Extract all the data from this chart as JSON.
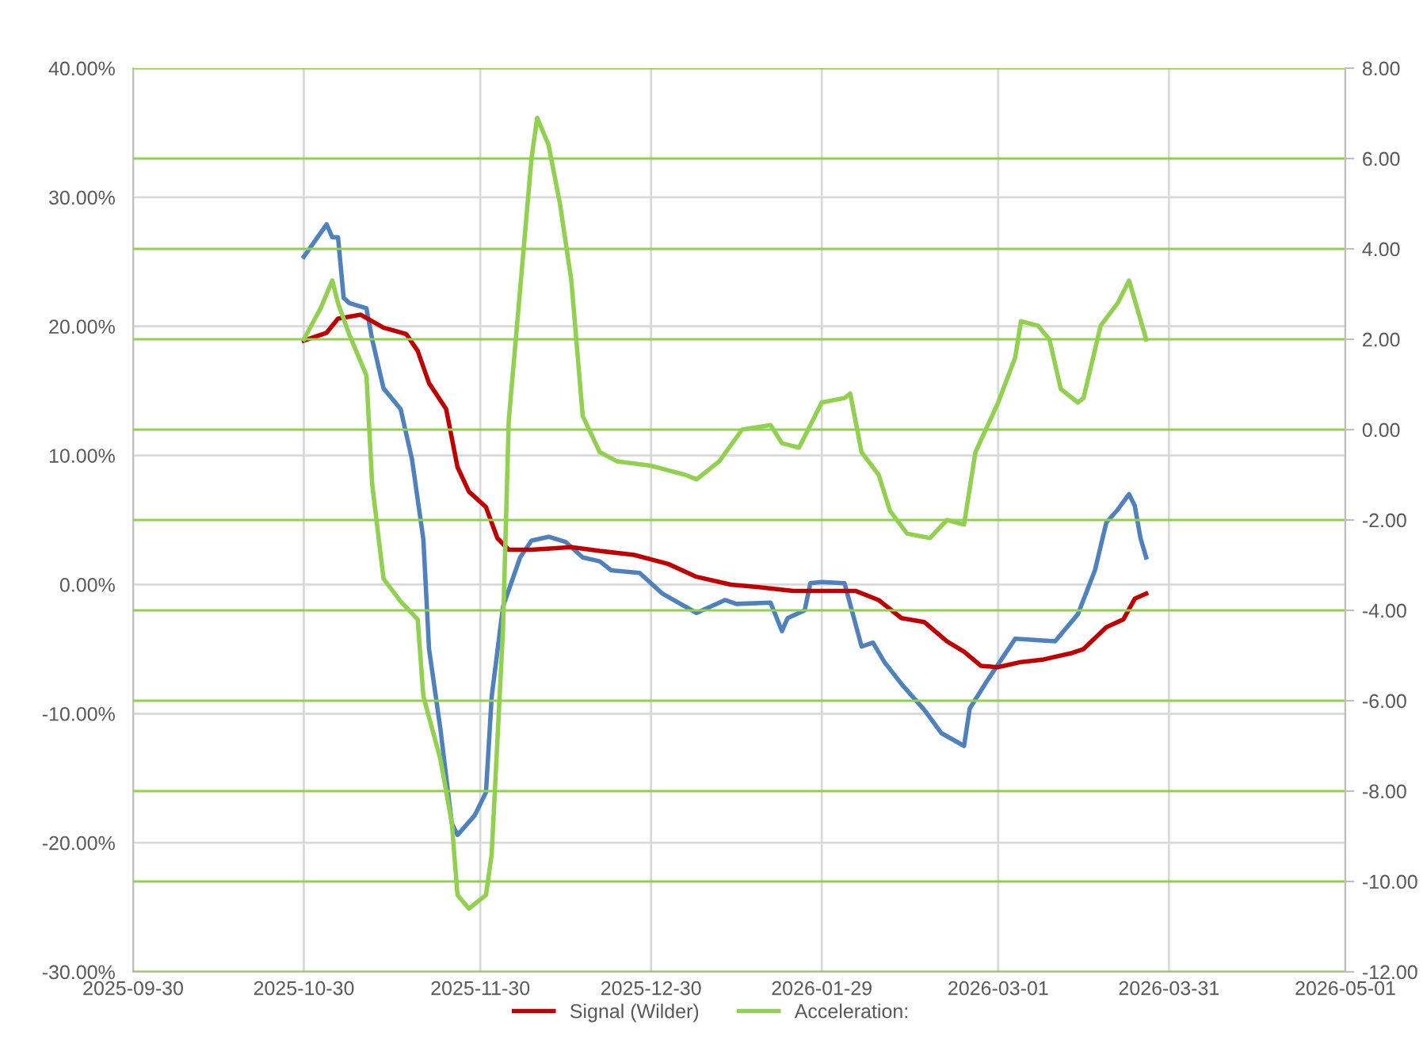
{
  "chart_data": {
    "type": "line",
    "xlim": [
      "2025-09-30",
      "2026-05-01"
    ],
    "xticks": [
      "2025-09-30",
      "2025-10-30",
      "2025-11-30",
      "2025-12-30",
      "2026-01-29",
      "2026-03-01",
      "2026-03-31",
      "2026-05-01"
    ],
    "ylim": [
      -30,
      40
    ],
    "yticks": [
      {
        "value": -30,
        "label": "-30.00%"
      },
      {
        "value": -20,
        "label": "-20.00%"
      },
      {
        "value": -10,
        "label": "-10.00%"
      },
      {
        "value": 0,
        "label": "0.00%"
      },
      {
        "value": 10,
        "label": "10.00%"
      },
      {
        "value": 20,
        "label": "20.00%"
      },
      {
        "value": 30,
        "label": "30.00%"
      },
      {
        "value": 40,
        "label": "40.00%"
      }
    ],
    "y2lim": [
      -12,
      8
    ],
    "y2ticks": [
      {
        "value": -12,
        "label": "-12.00"
      },
      {
        "value": -10,
        "label": "-10.00"
      },
      {
        "value": -8,
        "label": "-8.00"
      },
      {
        "value": -6,
        "label": "-6.00"
      },
      {
        "value": -4,
        "label": "-4.00"
      },
      {
        "value": -2,
        "label": "-2.00"
      },
      {
        "value": 0,
        "label": "0.00"
      },
      {
        "value": 2,
        "label": "2.00"
      },
      {
        "value": 4,
        "label": "4.00"
      },
      {
        "value": 6,
        "label": "6.00"
      },
      {
        "value": 8,
        "label": "8.00"
      }
    ],
    "grid": true,
    "legend": "bottom",
    "marker": "none",
    "line_style": "solid",
    "series": [
      {
        "color": "#4f81bd",
        "x": [
          "2025-10-30",
          "2025-11-03",
          "2025-11-04",
          "2025-11-05",
          "2025-11-06",
          "2025-11-07",
          "2025-11-10",
          "2025-11-11",
          "2025-11-13",
          "2025-11-16",
          "2025-11-18",
          "2025-11-20",
          "2025-11-21",
          "2025-11-23",
          "2025-11-25",
          "2025-11-26",
          "2025-11-29",
          "2025-12-01",
          "2025-12-02",
          "2025-12-04",
          "2025-12-07",
          "2025-12-09",
          "2025-12-12",
          "2025-12-15",
          "2025-12-18",
          "2025-12-21",
          "2025-12-23",
          "2025-12-28",
          "2026-01-01",
          "2026-01-07",
          "2026-01-10",
          "2026-01-12",
          "2026-01-14",
          "2026-01-20",
          "2026-01-22",
          "2026-01-23",
          "2026-01-26",
          "2026-01-27",
          "2026-01-29",
          "2026-02-02",
          "2026-02-05",
          "2026-02-07",
          "2026-02-09",
          "2026-02-12",
          "2026-02-16",
          "2026-02-19",
          "2026-02-23",
          "2026-02-24",
          "2026-02-27",
          "2026-03-04",
          "2026-03-11",
          "2026-03-15",
          "2026-03-18",
          "2026-03-20",
          "2026-03-22",
          "2026-03-24",
          "2026-03-25",
          "2026-03-26",
          "2026-03-27"
        ],
        "values": [
          25.4,
          27.9,
          26.9,
          26.9,
          22.2,
          21.8,
          21.4,
          19.0,
          15.2,
          13.6,
          9.7,
          3.5,
          -5.0,
          -11.2,
          -18.5,
          -19.4,
          -17.9,
          -16.1,
          -8.7,
          -1.7,
          2.1,
          3.4,
          3.7,
          3.3,
          2.1,
          1.8,
          1.1,
          0.9,
          -0.7,
          -2.2,
          -1.6,
          -1.2,
          -1.5,
          -1.4,
          -3.6,
          -2.6,
          -2.0,
          0.1,
          0.2,
          0.1,
          -4.8,
          -4.5,
          -6.0,
          -7.7,
          -9.7,
          -11.5,
          -12.5,
          -9.6,
          -7.5,
          -4.2,
          -4.4,
          -2.3,
          1.1,
          4.8,
          5.8,
          7.0,
          6.1,
          3.6,
          2.1
        ]
      },
      {
        "name": "Signal (Wilder)",
        "color": "#c00000",
        "x": [
          "2025-10-30",
          "2025-11-03",
          "2025-11-05",
          "2025-11-09",
          "2025-11-13",
          "2025-11-17",
          "2025-11-19",
          "2025-11-21",
          "2025-11-24",
          "2025-11-26",
          "2025-11-28",
          "2025-12-01",
          "2025-12-03",
          "2025-12-05",
          "2025-12-09",
          "2025-12-16",
          "2025-12-21",
          "2025-12-27",
          "2026-01-02",
          "2026-01-07",
          "2026-01-13",
          "2026-01-18",
          "2026-01-24",
          "2026-02-01",
          "2026-02-04",
          "2026-02-08",
          "2026-02-12",
          "2026-02-16",
          "2026-02-20",
          "2026-02-23",
          "2026-02-26",
          "2026-03-01",
          "2026-03-05",
          "2026-03-09",
          "2026-03-14",
          "2026-03-16",
          "2026-03-20",
          "2026-03-23",
          "2026-03-25",
          "2026-03-27"
        ],
        "values": [
          18.9,
          19.5,
          20.6,
          20.9,
          19.9,
          19.4,
          18.1,
          15.6,
          13.6,
          9.1,
          7.2,
          6.0,
          3.6,
          2.7,
          2.7,
          2.9,
          2.6,
          2.3,
          1.6,
          0.6,
          0.0,
          -0.2,
          -0.5,
          -0.5,
          -0.5,
          -1.2,
          -2.6,
          -2.9,
          -4.4,
          -5.2,
          -6.3,
          -6.4,
          -6.0,
          -5.8,
          -5.3,
          -5.0,
          -3.3,
          -2.7,
          -1.1,
          -0.7
        ]
      },
      {
        "name": "Acceleration:",
        "color": "#92d050",
        "axis": "y2",
        "x": [
          "2025-10-30",
          "2025-11-02",
          "2025-11-04",
          "2025-11-05",
          "2025-11-07",
          "2025-11-10",
          "2025-11-11",
          "2025-11-13",
          "2025-11-16",
          "2025-11-19",
          "2025-11-20",
          "2025-11-23",
          "2025-11-25",
          "2025-11-26",
          "2025-11-28",
          "2025-12-01",
          "2025-12-02",
          "2025-12-04",
          "2025-12-05",
          "2025-12-07",
          "2025-12-09",
          "2025-12-10",
          "2025-12-12",
          "2025-12-14",
          "2025-12-16",
          "2025-12-18",
          "2025-12-21",
          "2025-12-24",
          "2025-12-30",
          "2026-01-05",
          "2026-01-07",
          "2026-01-11",
          "2026-01-15",
          "2026-01-20",
          "2026-01-22",
          "2026-01-25",
          "2026-01-29",
          "2026-02-02",
          "2026-02-03",
          "2026-02-05",
          "2026-02-08",
          "2026-02-10",
          "2026-02-13",
          "2026-02-17",
          "2026-02-20",
          "2026-02-23",
          "2026-02-25",
          "2026-03-01",
          "2026-03-04",
          "2026-03-05",
          "2026-03-08",
          "2026-03-10",
          "2026-03-12",
          "2026-03-15",
          "2026-03-16",
          "2026-03-19",
          "2026-03-22",
          "2026-03-24",
          "2026-03-27"
        ],
        "values": [
          2.0,
          2.7,
          3.3,
          2.8,
          2.1,
          1.2,
          -1.2,
          -3.3,
          -3.8,
          -4.2,
          -5.9,
          -7.3,
          -8.7,
          -10.3,
          -10.6,
          -10.3,
          -9.4,
          -4.4,
          0.2,
          3.1,
          6.0,
          6.9,
          6.3,
          5.0,
          3.3,
          0.3,
          -0.5,
          -0.7,
          -0.8,
          -1.0,
          -1.1,
          -0.7,
          0.0,
          0.1,
          -0.3,
          -0.4,
          0.6,
          0.7,
          0.8,
          -0.5,
          -1.0,
          -1.8,
          -2.3,
          -2.4,
          -2.0,
          -2.1,
          -0.5,
          0.6,
          1.6,
          2.4,
          2.3,
          2.0,
          0.9,
          0.6,
          0.7,
          2.3,
          2.8,
          3.3,
          2.0
        ]
      }
    ]
  }
}
